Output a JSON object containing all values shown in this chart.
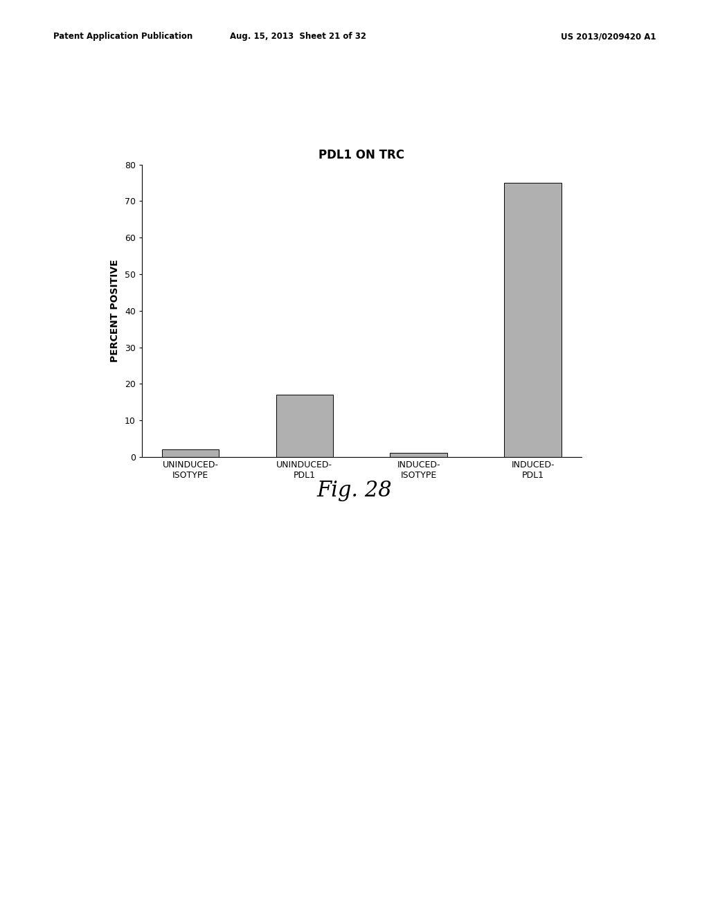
{
  "title": "PDL1 ON TRC",
  "ylabel": "PERCENT POSITIVE",
  "categories": [
    "UNINDUCED-\nISOTYPE",
    "UNINDUCED-\nPDL1",
    "INDUCED-\nISOTYPE",
    "INDUCED-\nPDL1"
  ],
  "values": [
    2.0,
    17.0,
    1.2,
    75.0
  ],
  "bar_color": "#b0b0b0",
  "ylim": [
    0,
    80
  ],
  "yticks": [
    0,
    10,
    20,
    30,
    40,
    50,
    60,
    70,
    80
  ],
  "bar_width": 0.5,
  "fig_caption": "Fig. 28",
  "header_left": "Patent Application Publication",
  "header_mid": "Aug. 15, 2013  Sheet 21 of 32",
  "header_right": "US 2013/0209420 A1",
  "background_color": "#ffffff",
  "title_fontsize": 12,
  "ylabel_fontsize": 10,
  "tick_fontsize": 9,
  "caption_fontsize": 22,
  "header_fontsize": 8.5
}
